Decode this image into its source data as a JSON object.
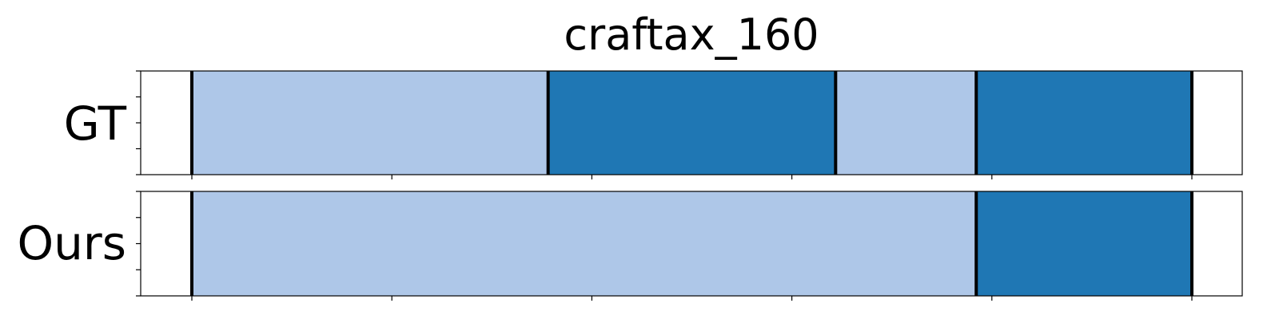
{
  "chart_data": {
    "type": "segmentation",
    "title": "craftax_160",
    "x_range": [
      0,
      160
    ],
    "x_ticks": [
      0,
      32,
      64,
      96,
      128,
      160
    ],
    "rows": [
      {
        "label": "GT",
        "segments": [
          {
            "start": 0,
            "end": 57,
            "class": "light"
          },
          {
            "start": 57,
            "end": 103,
            "class": "dark"
          },
          {
            "start": 103,
            "end": 125.5,
            "class": "light"
          },
          {
            "start": 125.5,
            "end": 160,
            "class": "dark"
          }
        ],
        "boundaries": [
          0,
          57,
          103,
          125.5,
          160
        ]
      },
      {
        "label": "Ours",
        "segments": [
          {
            "start": 0,
            "end": 125.5,
            "class": "light"
          },
          {
            "start": 125.5,
            "end": 160,
            "class": "dark"
          }
        ],
        "boundaries": [
          0,
          125.5,
          160
        ]
      }
    ],
    "colors": {
      "light": "#aec7e8",
      "dark": "#1f77b4",
      "boundary": "#000000"
    }
  }
}
